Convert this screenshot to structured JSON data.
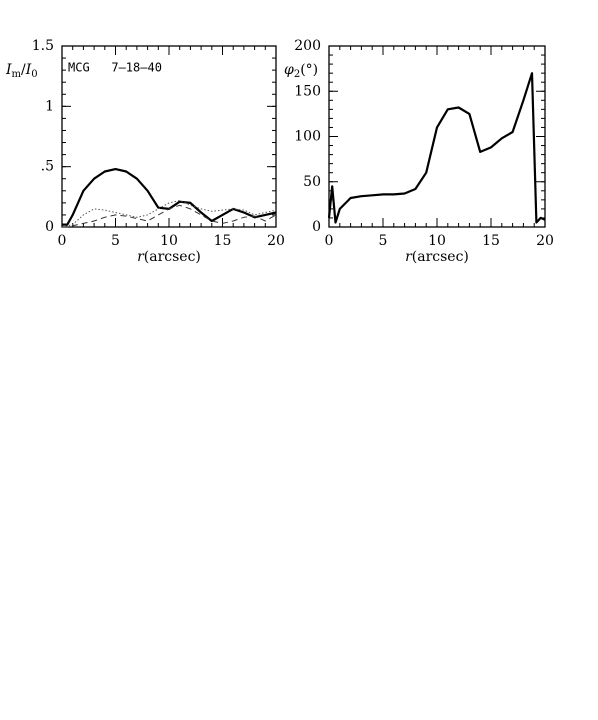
{
  "chart_data": [
    {
      "type": "line",
      "ylabel_parts": [
        {
          "text": "I"
        },
        {
          "text": "m",
          "sub": true
        },
        {
          "text": "/"
        },
        {
          "text": "I",
          "italic": true
        },
        {
          "text": "0",
          "sub": true
        }
      ],
      "xlabel_parts": [
        {
          "text": "r",
          "italic": true
        },
        {
          "text": "(arcsec)"
        }
      ],
      "annotation": "MCG   7–18–40",
      "x": [
        0,
        0.5,
        1,
        2,
        3,
        4,
        5,
        6,
        7,
        8,
        9,
        10,
        11,
        12,
        13,
        14,
        15,
        16,
        17,
        18,
        19,
        20
      ],
      "series": [
        {
          "color": "#000000",
          "style": "solid",
          "width": 2.2,
          "values": [
            0.02,
            0.02,
            0.1,
            0.3,
            0.4,
            0.46,
            0.48,
            0.46,
            0.4,
            0.3,
            0.16,
            0.15,
            0.21,
            0.2,
            0.12,
            0.05,
            0.1,
            0.15,
            0.12,
            0.08,
            0.1,
            0.12
          ]
        },
        {
          "color": "#555555",
          "style": "dotted",
          "width": 1,
          "values": [
            0,
            0.01,
            0.02,
            0.1,
            0.15,
            0.14,
            0.12,
            0.1,
            0.08,
            0.1,
            0.15,
            0.2,
            0.22,
            0.18,
            0.15,
            0.13,
            0.14,
            0.15,
            0.14,
            0.1,
            0.12,
            0.14
          ]
        },
        {
          "color": "#333333",
          "style": "dashed",
          "width": 1,
          "values": [
            0,
            0,
            0.01,
            0.03,
            0.05,
            0.08,
            0.1,
            0.09,
            0.07,
            0.05,
            0.1,
            0.15,
            0.18,
            0.15,
            0.1,
            0.05,
            0.03,
            0.05,
            0.08,
            0.09,
            0.05,
            0.1
          ]
        }
      ],
      "xlim": [
        0,
        20
      ],
      "xticks": [
        0,
        5,
        10,
        15,
        20
      ],
      "xminor": 1,
      "ylim": [
        0,
        1.5
      ],
      "yticks": [
        0,
        {
          "value": 0.5,
          "label": ".5"
        },
        1,
        1.5
      ],
      "yminor": 0.1
    },
    {
      "type": "line",
      "ylabel_parts": [
        {
          "text": "φ",
          "italic": true
        },
        {
          "text": "2",
          "sub": true
        },
        {
          "text": "(°)"
        }
      ],
      "xlabel_parts": [
        {
          "text": "r",
          "italic": true
        },
        {
          "text": "(arcsec)"
        }
      ],
      "x": [
        0,
        0.3,
        0.6,
        1,
        2,
        3,
        4,
        5,
        6,
        7,
        8,
        9,
        10,
        11,
        12,
        13,
        14,
        15,
        16,
        17,
        18,
        18.8,
        19.2,
        19.6,
        20
      ],
      "series": [
        {
          "color": "#000000",
          "style": "solid",
          "width": 2.2,
          "values": [
            10,
            45,
            5,
            20,
            32,
            34,
            35,
            36,
            36,
            37,
            42,
            60,
            110,
            130,
            132,
            125,
            83,
            88,
            98,
            105,
            140,
            170,
            5,
            10,
            8
          ]
        }
      ],
      "xlim": [
        0,
        20
      ],
      "xticks": [
        0,
        5,
        10,
        15,
        20
      ],
      "xminor": 1,
      "ylim": [
        0,
        200
      ],
      "yticks": [
        0,
        50,
        100,
        150,
        200
      ],
      "yminor": 10
    }
  ]
}
